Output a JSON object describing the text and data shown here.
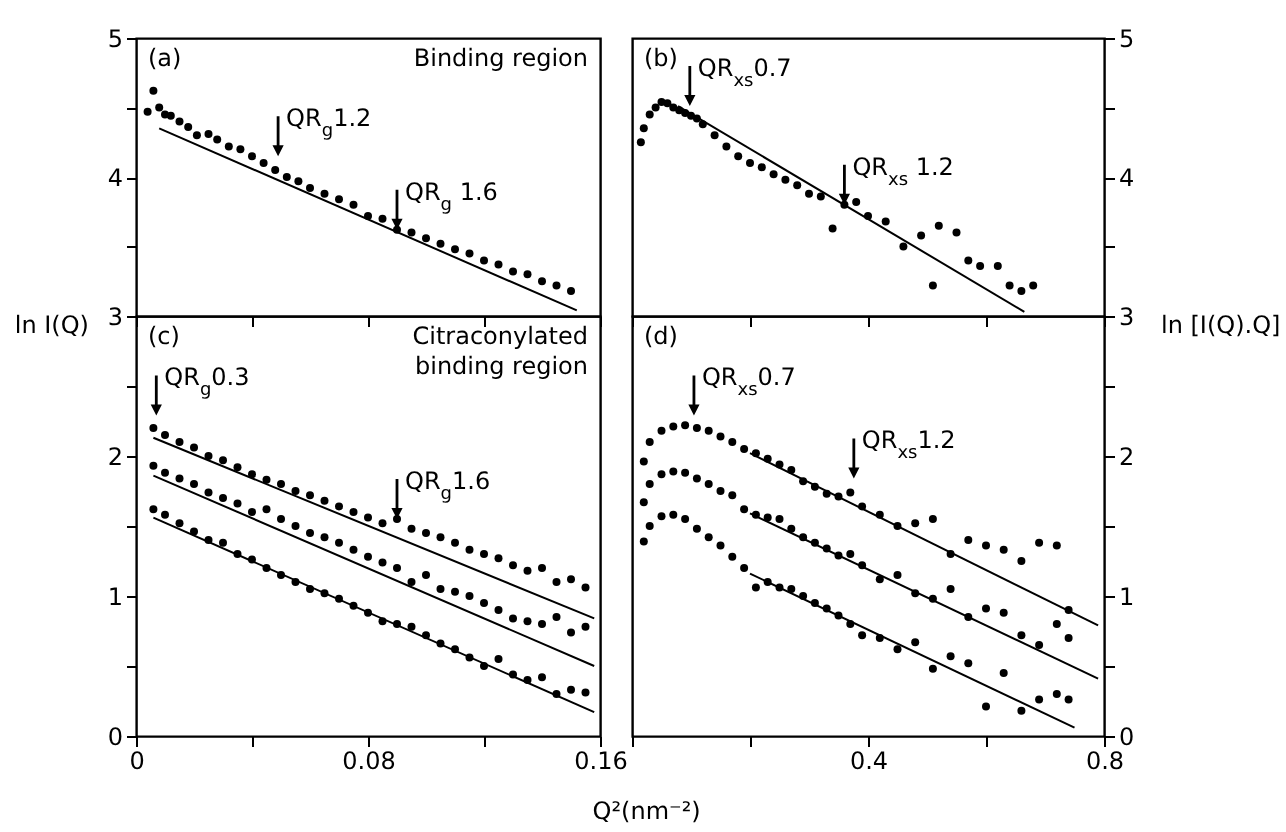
{
  "chart_data": [
    {
      "type": "scatter",
      "tick_labels": "y",
      "xlim": [
        0,
        0.16
      ],
      "xticks": [
        0,
        0.04,
        0.08,
        0.12,
        0.16
      ],
      "ylim": [
        3,
        5
      ],
      "yticks": [
        3,
        {
          "value": 3.5,
          "label": null
        },
        4,
        {
          "value": 4.5,
          "label": null
        },
        5
      ],
      "annotations": [
        "(a)",
        "Binding region",
        {
          "text": "QR$_{g}$1.2",
          "x": 0.049,
          "y": 4.15
        },
        {
          "text": "QR$_{g}$ 1.6",
          "x": 0.09,
          "y": 3.62
        }
      ],
      "series": [
        {
          "marker": "circle",
          "color": "#000000",
          "x": [
            0.004,
            0.006,
            0.008,
            0.01,
            0.012,
            0.015,
            0.018,
            0.021,
            0.025,
            0.028,
            0.032,
            0.036,
            0.04,
            0.044,
            0.048,
            0.052,
            0.056,
            0.06,
            0.065,
            0.07,
            0.075,
            0.08,
            0.085,
            0.09,
            0.095,
            0.1,
            0.105,
            0.11,
            0.115,
            0.12,
            0.125,
            0.13,
            0.135,
            0.14,
            0.145,
            0.15
          ],
          "values": [
            4.47,
            4.62,
            4.5,
            4.45,
            4.44,
            4.4,
            4.36,
            4.3,
            4.31,
            4.27,
            4.22,
            4.2,
            4.15,
            4.1,
            4.05,
            4.0,
            3.97,
            3.92,
            3.88,
            3.84,
            3.8,
            3.72,
            3.7,
            3.62,
            3.6,
            3.56,
            3.52,
            3.48,
            3.45,
            3.4,
            3.37,
            3.32,
            3.3,
            3.25,
            3.22,
            3.18
          ]
        },
        {
          "type": "line",
          "color": "#000000",
          "x": [
            0.008,
            0.152
          ],
          "values": [
            4.35,
            3.04
          ]
        }
      ]
    },
    {
      "type": "scatter",
      "tick_labels": "y",
      "xlim": [
        0,
        0.8
      ],
      "xticks": [
        0,
        0.2,
        0.4,
        0.6,
        0.8
      ],
      "ylim": [
        3,
        5
      ],
      "yticks": [
        3,
        {
          "value": 3.5,
          "label": null
        },
        4,
        {
          "value": 4.5,
          "label": null
        },
        5
      ],
      "annotations": [
        "(b)",
        {
          "text": "QR$_{xs}$0.7",
          "x": 0.098,
          "y": 4.51
        },
        {
          "text": "QR$_{xs}$ 1.2",
          "x": 0.36,
          "y": 3.8
        }
      ],
      "series": [
        {
          "marker": "circle",
          "color": "#000000",
          "x": [
            0.015,
            0.02,
            0.03,
            0.04,
            0.05,
            0.06,
            0.07,
            0.08,
            0.09,
            0.1,
            0.11,
            0.12,
            0.14,
            0.16,
            0.18,
            0.2,
            0.22,
            0.24,
            0.26,
            0.28,
            0.3,
            0.32,
            0.34,
            0.36,
            0.38,
            0.4,
            0.43,
            0.46,
            0.49,
            0.51,
            0.52,
            0.55,
            0.57,
            0.59,
            0.62,
            0.64,
            0.66,
            0.68
          ],
          "values": [
            4.25,
            4.35,
            4.45,
            4.5,
            4.54,
            4.53,
            4.5,
            4.48,
            4.46,
            4.44,
            4.42,
            4.38,
            4.3,
            4.22,
            4.15,
            4.1,
            4.07,
            4.02,
            3.98,
            3.94,
            3.88,
            3.86,
            3.63,
            3.8,
            3.82,
            3.72,
            3.68,
            3.5,
            3.58,
            3.22,
            3.65,
            3.6,
            3.4,
            3.36,
            3.36,
            3.22,
            3.18,
            3.22
          ]
        },
        {
          "type": "line",
          "color": "#000000",
          "x": [
            0.078,
            0.665
          ],
          "values": [
            4.51,
            3.03
          ]
        }
      ]
    },
    {
      "type": "scatter",
      "xlabel": "Q²(nm⁻²)",
      "ylabel": "ln I(Q)",
      "xlim": [
        0,
        0.16
      ],
      "xticks": [
        0,
        {
          "value": 0.04,
          "label": null
        },
        0.08,
        {
          "value": 0.12,
          "label": null
        },
        0.16
      ],
      "ylim": [
        0,
        3
      ],
      "yticks": [
        0,
        {
          "value": 0.5,
          "label": null
        },
        1,
        {
          "value": 1.5,
          "label": null
        },
        2,
        {
          "value": 2.5,
          "label": null
        }
      ],
      "annotations": [
        "(c)",
        "Citraconylated\nbinding region",
        {
          "text": "QR$_{g}$0.3",
          "x": 0.007,
          "y": 2.29
        },
        {
          "text": "QR$_{g}$1.6",
          "x": 0.09,
          "y": 1.55
        }
      ],
      "series": [
        {
          "marker": "circle",
          "color": "#000000",
          "x": [
            0.006,
            0.01,
            0.015,
            0.02,
            0.025,
            0.03,
            0.035,
            0.04,
            0.045,
            0.05,
            0.055,
            0.06,
            0.065,
            0.07,
            0.075,
            0.08,
            0.085,
            0.09,
            0.095,
            0.1,
            0.105,
            0.11,
            0.115,
            0.12,
            0.125,
            0.13,
            0.135,
            0.14,
            0.145,
            0.15,
            0.155
          ],
          "values": [
            2.2,
            2.15,
            2.1,
            2.06,
            2.0,
            1.97,
            1.92,
            1.87,
            1.83,
            1.8,
            1.75,
            1.72,
            1.68,
            1.64,
            1.6,
            1.56,
            1.52,
            1.55,
            1.48,
            1.45,
            1.42,
            1.38,
            1.33,
            1.3,
            1.27,
            1.22,
            1.18,
            1.2,
            1.1,
            1.12,
            1.06
          ]
        },
        {
          "marker": "circle",
          "color": "#000000",
          "x": [
            0.006,
            0.01,
            0.015,
            0.02,
            0.025,
            0.03,
            0.035,
            0.04,
            0.045,
            0.05,
            0.055,
            0.06,
            0.065,
            0.07,
            0.075,
            0.08,
            0.085,
            0.09,
            0.095,
            0.1,
            0.105,
            0.11,
            0.115,
            0.12,
            0.125,
            0.13,
            0.135,
            0.14,
            0.145,
            0.15,
            0.155
          ],
          "values": [
            1.93,
            1.88,
            1.84,
            1.8,
            1.74,
            1.7,
            1.66,
            1.6,
            1.62,
            1.55,
            1.5,
            1.45,
            1.42,
            1.38,
            1.33,
            1.28,
            1.24,
            1.2,
            1.1,
            1.15,
            1.05,
            1.03,
            1.0,
            0.95,
            0.9,
            0.84,
            0.82,
            0.8,
            0.85,
            0.74,
            0.78
          ]
        },
        {
          "marker": "circle",
          "color": "#000000",
          "x": [
            0.006,
            0.01,
            0.015,
            0.02,
            0.025,
            0.03,
            0.035,
            0.04,
            0.045,
            0.05,
            0.055,
            0.06,
            0.065,
            0.07,
            0.075,
            0.08,
            0.085,
            0.09,
            0.095,
            0.1,
            0.105,
            0.11,
            0.115,
            0.12,
            0.125,
            0.13,
            0.135,
            0.14,
            0.145,
            0.15,
            0.155
          ],
          "values": [
            1.62,
            1.58,
            1.52,
            1.46,
            1.4,
            1.38,
            1.3,
            1.26,
            1.2,
            1.15,
            1.1,
            1.05,
            1.02,
            0.98,
            0.93,
            0.88,
            0.82,
            0.8,
            0.78,
            0.72,
            0.66,
            0.62,
            0.56,
            0.5,
            0.55,
            0.44,
            0.4,
            0.42,
            0.3,
            0.33,
            0.31
          ]
        },
        {
          "type": "line",
          "color": "#000000",
          "x": [
            0.006,
            0.158
          ],
          "values": [
            2.13,
            0.84
          ]
        },
        {
          "type": "line",
          "color": "#000000",
          "x": [
            0.006,
            0.158
          ],
          "values": [
            1.86,
            0.5
          ]
        },
        {
          "type": "line",
          "color": "#000000",
          "x": [
            0.006,
            0.158
          ],
          "values": [
            1.56,
            0.17
          ]
        }
      ]
    },
    {
      "type": "scatter",
      "ylabel": "ln [I(Q).Q]",
      "xlim": [
        0,
        0.8
      ],
      "xticks": [
        {
          "value": 0,
          "label": null
        },
        {
          "value": 0.2,
          "label": null
        },
        0.4,
        {
          "value": 0.6,
          "label": null
        },
        0.8
      ],
      "ylim": [
        0,
        3
      ],
      "yticks": [
        0,
        {
          "value": 0.5,
          "label": null
        },
        1,
        {
          "value": 1.5,
          "label": null
        },
        2,
        {
          "value": 2.5,
          "label": null
        }
      ],
      "annotations": [
        "(d)",
        {
          "text": "QR$_{xs}$0.7",
          "x": 0.105,
          "y": 2.29
        },
        {
          "text": "QR$_{xs}$1.2",
          "x": 0.376,
          "y": 1.84
        }
      ],
      "series": [
        {
          "marker": "circle",
          "color": "#000000",
          "x": [
            0.02,
            0.03,
            0.05,
            0.07,
            0.09,
            0.11,
            0.13,
            0.15,
            0.17,
            0.19,
            0.21,
            0.23,
            0.25,
            0.27,
            0.29,
            0.31,
            0.33,
            0.35,
            0.37,
            0.39,
            0.42,
            0.45,
            0.48,
            0.51,
            0.54,
            0.57,
            0.6,
            0.63,
            0.66,
            0.69,
            0.72,
            0.74
          ],
          "values": [
            1.96,
            2.1,
            2.18,
            2.21,
            2.22,
            2.2,
            2.18,
            2.14,
            2.1,
            2.05,
            2.02,
            1.98,
            1.94,
            1.9,
            1.82,
            1.78,
            1.73,
            1.71,
            1.74,
            1.64,
            1.58,
            1.5,
            1.52,
            1.55,
            1.3,
            1.4,
            1.36,
            1.33,
            1.25,
            1.38,
            1.36,
            0.9
          ]
        },
        {
          "marker": "circle",
          "color": "#000000",
          "x": [
            0.02,
            0.03,
            0.05,
            0.07,
            0.09,
            0.11,
            0.13,
            0.15,
            0.17,
            0.19,
            0.21,
            0.23,
            0.25,
            0.27,
            0.29,
            0.31,
            0.33,
            0.35,
            0.37,
            0.39,
            0.42,
            0.45,
            0.48,
            0.51,
            0.54,
            0.57,
            0.6,
            0.63,
            0.66,
            0.69,
            0.72,
            0.74
          ],
          "values": [
            1.67,
            1.8,
            1.87,
            1.89,
            1.88,
            1.84,
            1.8,
            1.75,
            1.72,
            1.62,
            1.58,
            1.56,
            1.55,
            1.48,
            1.42,
            1.38,
            1.34,
            1.29,
            1.3,
            1.22,
            1.12,
            1.15,
            1.02,
            0.98,
            1.05,
            0.85,
            0.91,
            0.88,
            0.72,
            0.65,
            0.8,
            0.7
          ]
        },
        {
          "marker": "circle",
          "color": "#000000",
          "x": [
            0.02,
            0.03,
            0.05,
            0.07,
            0.09,
            0.11,
            0.13,
            0.15,
            0.17,
            0.19,
            0.21,
            0.23,
            0.25,
            0.27,
            0.29,
            0.31,
            0.33,
            0.35,
            0.37,
            0.39,
            0.42,
            0.45,
            0.48,
            0.51,
            0.54,
            0.57,
            0.6,
            0.63,
            0.66,
            0.69,
            0.72,
            0.74
          ],
          "values": [
            1.39,
            1.5,
            1.57,
            1.58,
            1.55,
            1.48,
            1.42,
            1.36,
            1.28,
            1.2,
            1.06,
            1.1,
            1.06,
            1.05,
            1.0,
            0.95,
            0.91,
            0.86,
            0.8,
            0.72,
            0.7,
            0.62,
            0.67,
            0.48,
            0.57,
            0.52,
            0.21,
            0.45,
            0.18,
            0.26,
            0.3,
            0.26
          ]
        },
        {
          "type": "line",
          "color": "#000000",
          "x": [
            0.2,
            0.79
          ],
          "values": [
            2.02,
            0.79
          ]
        },
        {
          "type": "line",
          "color": "#000000",
          "x": [
            0.2,
            0.79
          ],
          "values": [
            1.59,
            0.41
          ]
        },
        {
          "type": "line",
          "color": "#000000",
          "x": [
            0.2,
            0.75
          ],
          "values": [
            1.16,
            0.06
          ]
        }
      ]
    }
  ]
}
